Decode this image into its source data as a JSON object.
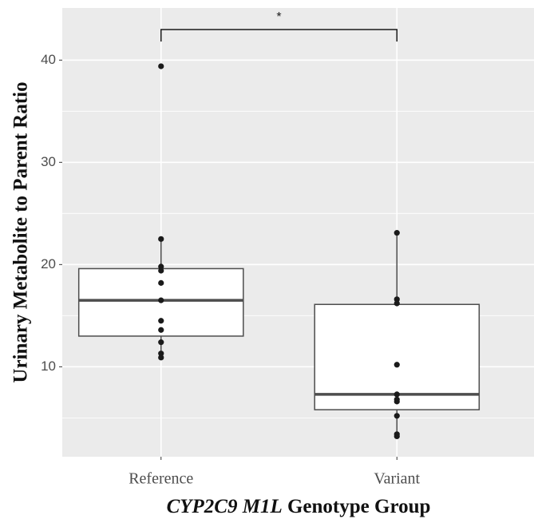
{
  "chart_data": {
    "type": "box",
    "xlabel": [
      "CYP2C9 M1L",
      "Genotype Group"
    ],
    "ylabel": "Urinary Metabolite to Parent Ratio",
    "annotation": "*",
    "categories": [
      "Reference",
      "Variant"
    ],
    "boxes": [
      {
        "low": 10.9,
        "q1": 13.0,
        "median": 16.5,
        "q3": 19.6,
        "high": 22.5,
        "points": [
          39.4,
          22.5,
          19.8,
          19.4,
          18.2,
          16.5,
          14.5,
          13.6,
          12.4,
          11.3,
          10.9
        ]
      },
      {
        "low": 3.2,
        "q1": 5.8,
        "median": 7.3,
        "q3": 16.1,
        "high": 23.1,
        "points": [
          23.1,
          16.6,
          16.2,
          10.2,
          7.3,
          6.8,
          6.6,
          5.2,
          3.4,
          3.2
        ]
      }
    ],
    "ylim": [
      1.2,
      45.1
    ],
    "yticks": [
      10,
      20,
      30,
      40
    ],
    "yminor": [
      5,
      15,
      25,
      35
    ],
    "grid": true
  }
}
